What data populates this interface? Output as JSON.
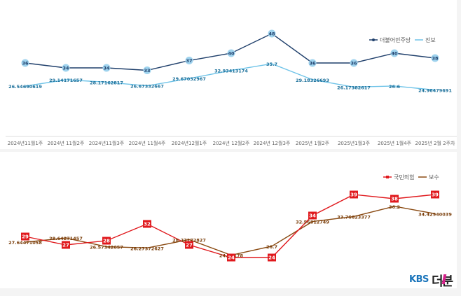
{
  "chart_data": [
    {
      "type": "line",
      "categories": [
        "2024년11월1주",
        "2024년 11월2주",
        "2024년11월3주",
        "2024년 11월4주",
        "2024년12월1주",
        "2024년 12월2주",
        "2024년 12월3주",
        "2025년 1월2주",
        "2025년1월3주",
        "2025년 1월4주",
        "2025년 2월 2주차"
      ],
      "ylim": [
        18,
        52
      ],
      "series": [
        {
          "name": "더불어민주당",
          "color": "#1f3f6b",
          "marker": "circle",
          "values": [
            36,
            34,
            34,
            33,
            37,
            40,
            48,
            36,
            36,
            40,
            38
          ],
          "labels": [
            "36",
            "34",
            "34",
            "33",
            "37",
            "40",
            "48",
            "36",
            "36",
            "40",
            "38"
          ]
        },
        {
          "name": "진보",
          "color": "#6ec3e8",
          "marker": "none",
          "values": [
            26.54690619,
            29.14171657,
            28.17162817,
            26.67332667,
            29.67032967,
            32.93413174,
            35.7,
            29.18326693,
            26.17382617,
            26.6,
            24.96479691
          ],
          "labels": [
            "26.54690619",
            "29.14171657",
            "28.17162817",
            "26.67332667",
            "29.67032967",
            "32.93413174",
            "35.7",
            "29.18326693",
            "26.17382617",
            "26.6",
            "24.96479691"
          ]
        }
      ]
    },
    {
      "type": "line",
      "ylim": [
        18,
        44
      ],
      "series": [
        {
          "name": "국민의힘",
          "color": "#e0191d",
          "marker": "square",
          "values": [
            29,
            27,
            28,
            32,
            27,
            24,
            24,
            34,
            39,
            38,
            39
          ],
          "labels": [
            "29",
            "27",
            "28",
            "32",
            "27",
            "24",
            "24",
            "34",
            "39",
            "38",
            "39"
          ]
        },
        {
          "name": "보수",
          "color": "#8a4a12",
          "marker": "none",
          "values": [
            27.64471058,
            28.64271457,
            26.57342657,
            26.27372627,
            28.27172827,
            24.55178,
            26.7,
            32.56812749,
            33.76623377,
            36.2,
            34.42940039
          ],
          "labels": [
            "27.64471058",
            "28.64271457",
            "26.57342657",
            "26.27372627",
            "28.27172827",
            "24.55178",
            "26.7",
            "32.56812749",
            "33.76623377",
            "36.2",
            "34.42940039"
          ]
        }
      ]
    }
  ],
  "logo": {
    "brand": "KBS",
    "mark": "더분"
  },
  "colors": {
    "logo_blue": "#1b75bb",
    "logo_pink": "#d6218b",
    "logo_dark": "#222222"
  }
}
